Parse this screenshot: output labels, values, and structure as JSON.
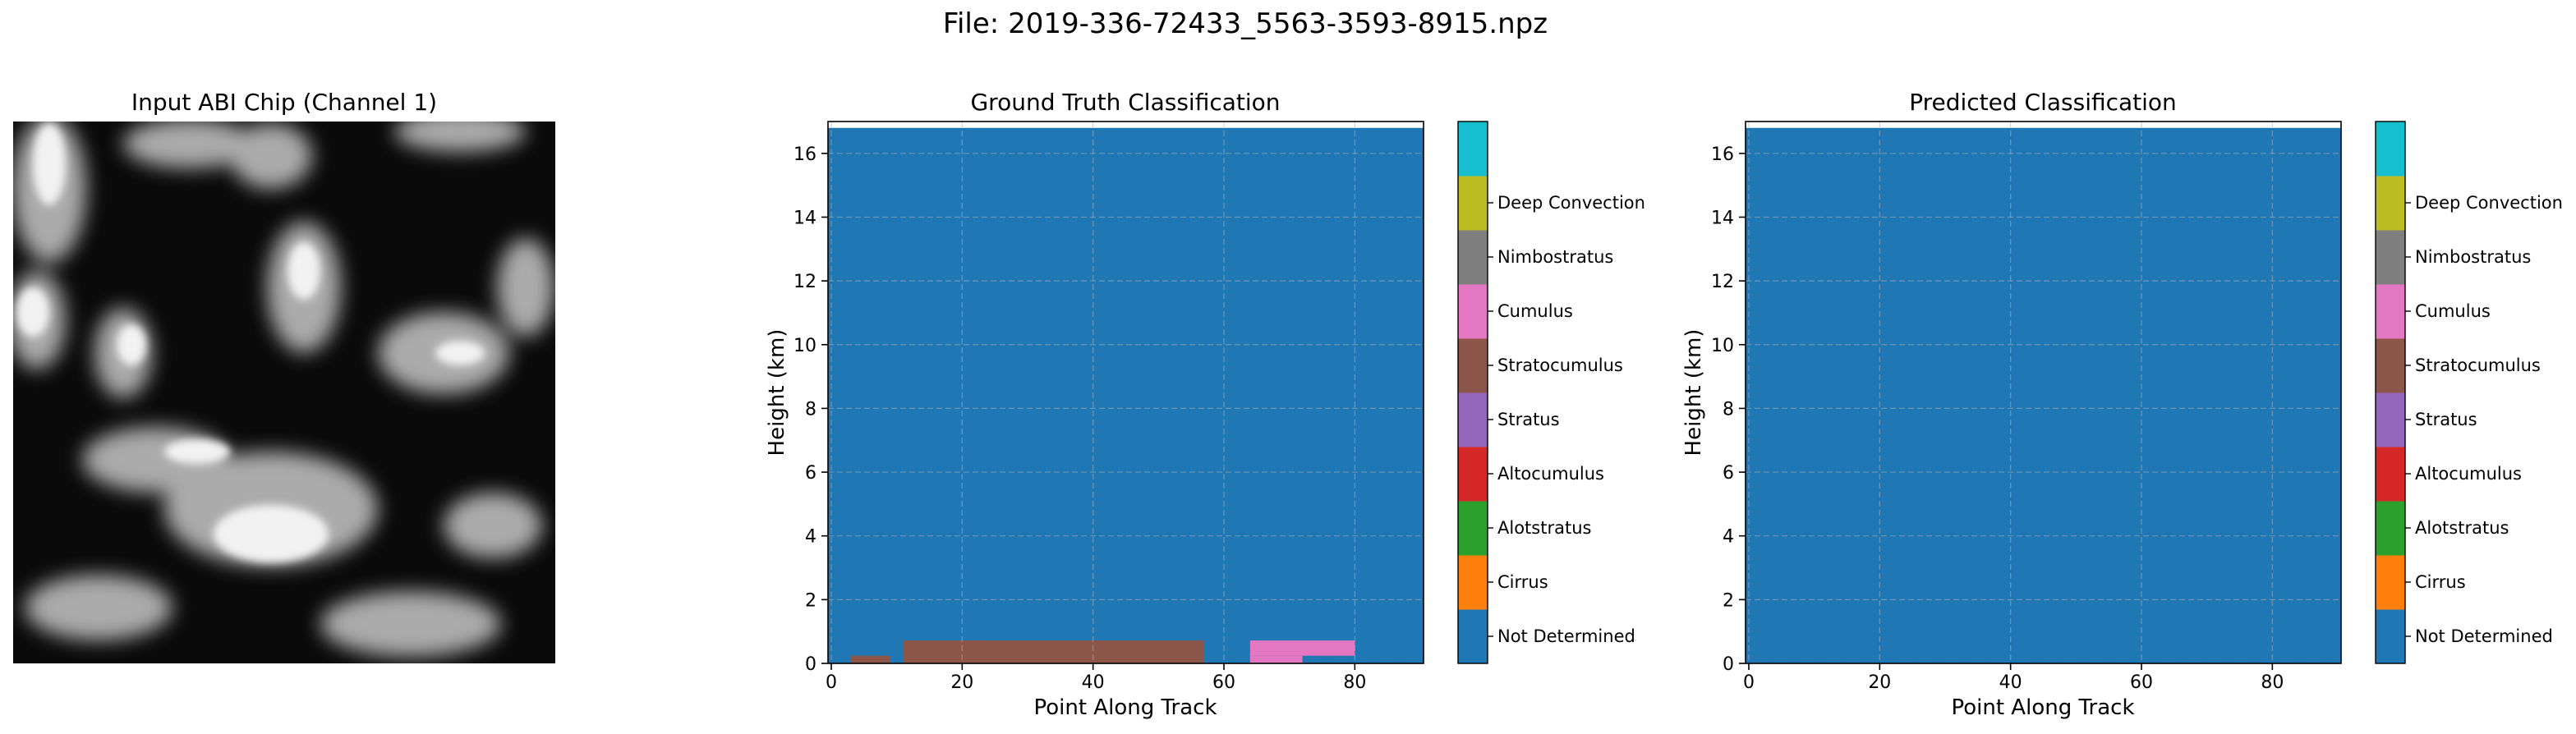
{
  "figure": {
    "suptitle": "File: 2019-336-72433_5563-3593-8915.npz"
  },
  "image_panel": {
    "title": "Input ABI Chip (Channel 1)"
  },
  "colorbar_classes": [
    "Not Determined",
    "Cirrus",
    "Alotstratus",
    "Altocumulus",
    "Stratus",
    "Stratocumulus",
    "Cumulus",
    "Nimbostratus",
    "Deep Convection"
  ],
  "class_colors": [
    "#1f77b4",
    "#ff7f0e",
    "#2ca02c",
    "#d62728",
    "#9467bd",
    "#8c564b",
    "#e377c2",
    "#7f7f7f",
    "#bcbd22",
    "#17becf"
  ],
  "chart_data": [
    {
      "type": "heatmap",
      "title": "Ground Truth Classification",
      "xlabel": "Point Along Track",
      "ylabel": "Height (km)",
      "xlim": [
        -0.5,
        90.5
      ],
      "ylim": [
        0,
        17
      ],
      "xticks": [
        0,
        20,
        40,
        60,
        80
      ],
      "yticks": [
        0,
        2,
        4,
        6,
        8,
        10,
        12,
        14,
        16
      ],
      "grid": true,
      "background_class": "Not Determined",
      "regions": [
        {
          "class": "Stratocumulus",
          "x": [
            3,
            9
          ],
          "y": [
            0,
            0.24
          ]
        },
        {
          "class": "Stratocumulus",
          "x": [
            11,
            57
          ],
          "y": [
            0,
            0.72
          ]
        },
        {
          "class": "Cumulus",
          "x": [
            64,
            80
          ],
          "y": [
            0.24,
            0.72
          ]
        },
        {
          "class": "Cumulus",
          "x": [
            64,
            72
          ],
          "y": [
            0,
            0.24
          ]
        }
      ]
    },
    {
      "type": "heatmap",
      "title": "Predicted Classification",
      "xlabel": "Point Along Track",
      "ylabel": "Height (km)",
      "xlim": [
        -0.5,
        90.5
      ],
      "ylim": [
        0,
        17
      ],
      "xticks": [
        0,
        20,
        40,
        60,
        80
      ],
      "yticks": [
        0,
        2,
        4,
        6,
        8,
        10,
        12,
        14,
        16
      ],
      "grid": true,
      "background_class": "Not Determined",
      "regions": []
    }
  ]
}
